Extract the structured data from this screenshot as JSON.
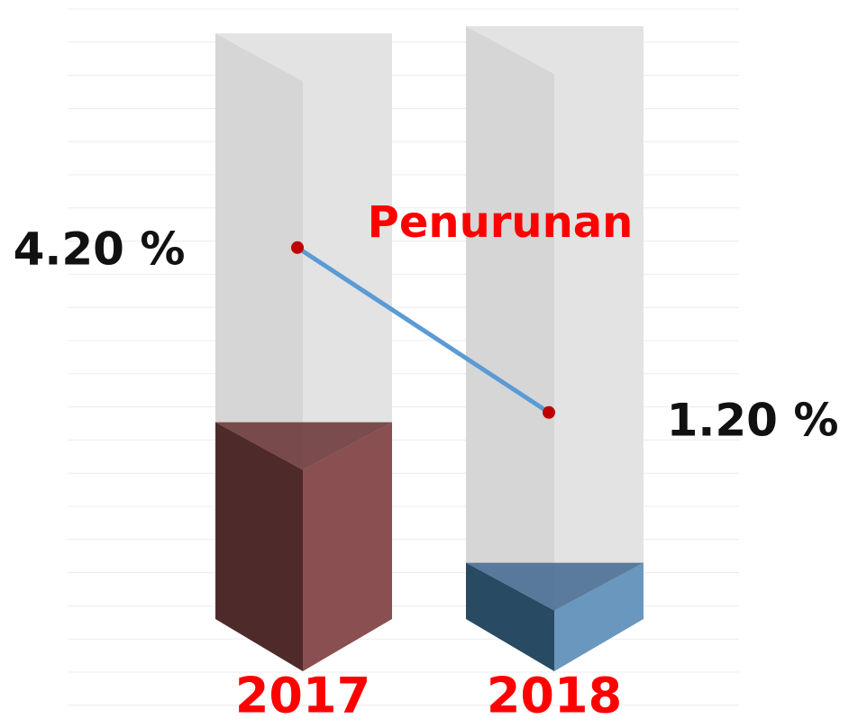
{
  "chart_data": {
    "type": "bar3d",
    "annotation": "Penurunan",
    "categories": [
      "2017",
      "2018"
    ],
    "values": [
      4.2,
      1.2
    ],
    "value_labels": [
      "4.20 %",
      "1.20 %"
    ],
    "series_colors": [
      [
        "#4f2a2b",
        "#6f3b3c",
        "#8a4f50"
      ],
      [
        "#284a63",
        "#4a6f95",
        "#6a97bd"
      ]
    ],
    "line_color": "#5b9bd5",
    "point_color": "#c00000"
  }
}
